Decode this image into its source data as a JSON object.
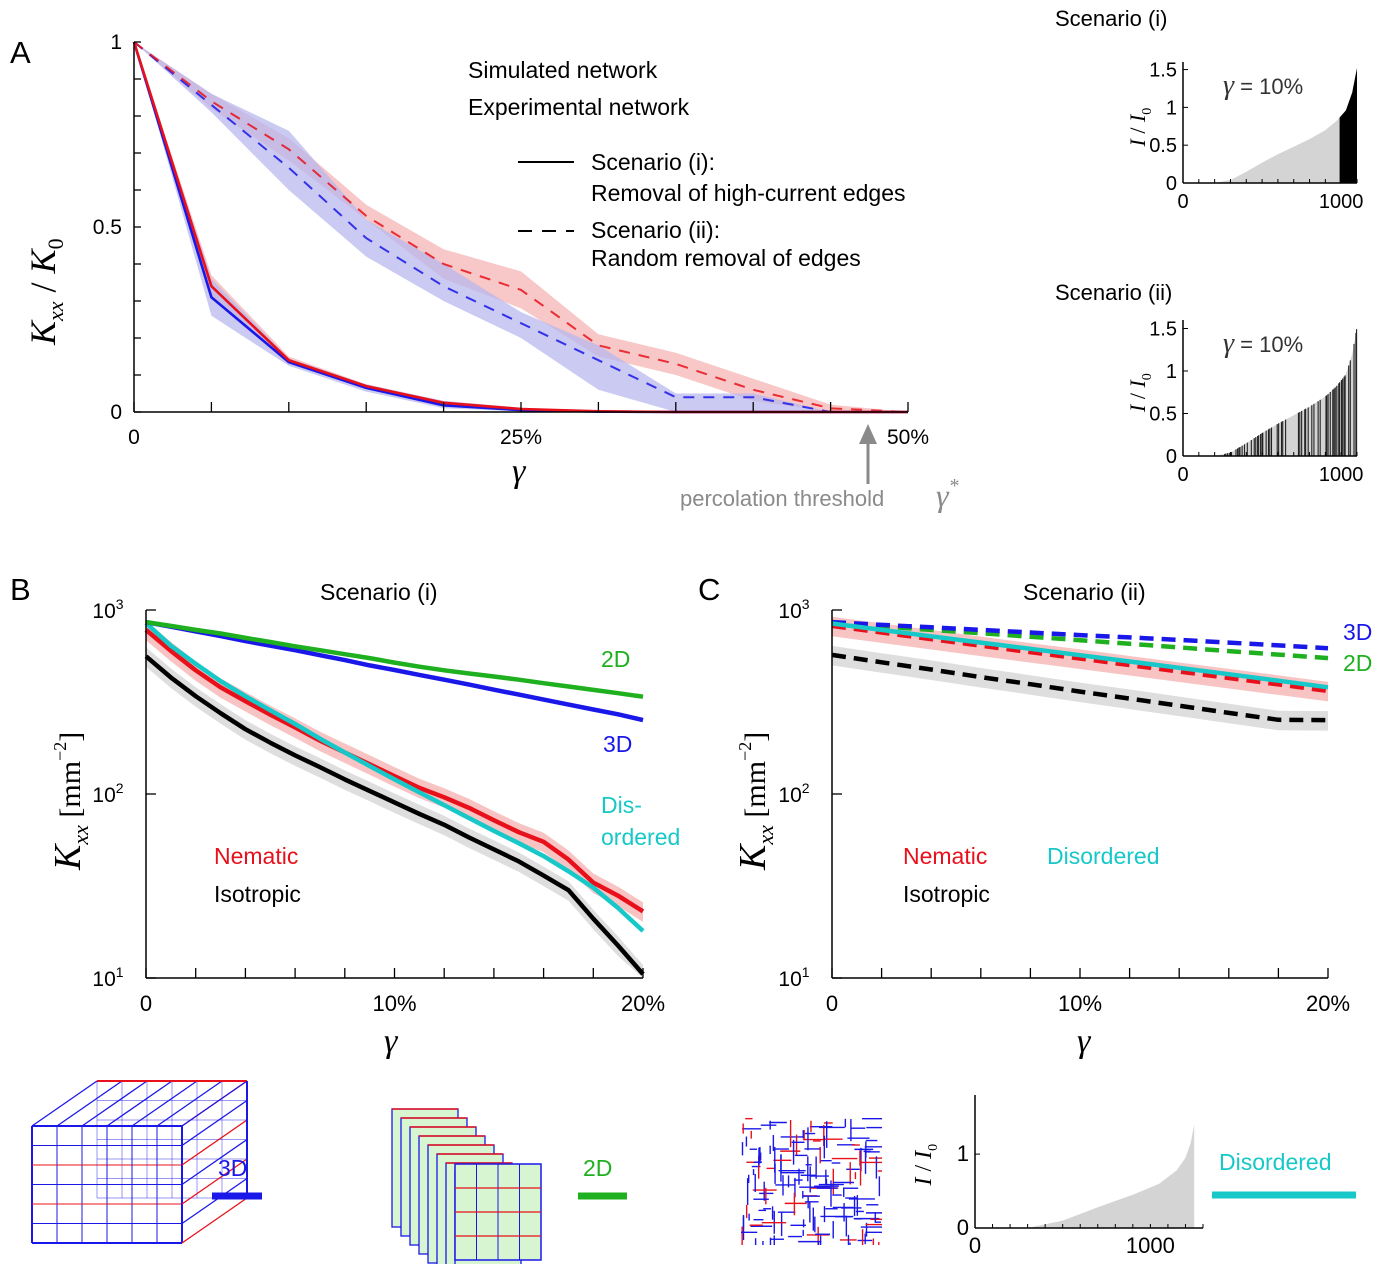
{
  "panels": {
    "A": {
      "letter": "A"
    },
    "B": {
      "letter": "B"
    },
    "C": {
      "letter": "C"
    }
  },
  "colors": {
    "red": "#e8101a",
    "blue": "#1a18e8",
    "green": "#1fb01f",
    "cyan": "#17c8c8",
    "black": "#000000",
    "gray": "#8a8a8a",
    "red_band": "#f6b4b4",
    "blue_band": "#b8b8ee",
    "gray_band": "#d6d6d6"
  },
  "chart_data": [
    {
      "id": "A",
      "type": "line",
      "ylabel": "K_xx / K_0",
      "xlabel": "γ",
      "xlim": [
        0,
        50
      ],
      "ylim": [
        0,
        1
      ],
      "xticklabels": [
        "0",
        "25%",
        "50%"
      ],
      "yticklabels": [
        "0",
        "0.5",
        "1"
      ],
      "legend": {
        "simulated": "Simulated network",
        "experimental": "Experimental network",
        "scenario_i_a": "Scenario (i):",
        "scenario_i_b": "Removal of high-current edges",
        "scenario_ii_a": "Scenario (ii):",
        "scenario_ii_b": "Random removal of edges"
      },
      "annotation": "percolation threshold",
      "x": [
        0,
        5,
        10,
        15,
        20,
        25,
        30,
        35,
        40,
        45,
        50
      ],
      "series": [
        {
          "name": "Simulated network, Scenario (i)",
          "style": "solid",
          "color": "red",
          "values": [
            1.0,
            0.34,
            0.14,
            0.07,
            0.025,
            0.008,
            0.002,
            0.0,
            0.0,
            0.0,
            0.0
          ],
          "lower": [
            1.0,
            0.31,
            0.13,
            0.065,
            0.02,
            0.006,
            0.001,
            0.0,
            0.0,
            0.0,
            0.0
          ],
          "upper": [
            1.0,
            0.37,
            0.15,
            0.075,
            0.03,
            0.01,
            0.003,
            0.0,
            0.0,
            0.0,
            0.0
          ]
        },
        {
          "name": "Experimental network, Scenario (i)",
          "style": "solid",
          "color": "blue",
          "values": [
            1.0,
            0.31,
            0.135,
            0.065,
            0.018,
            0.005,
            0.001,
            0.0,
            0.0,
            0.0,
            0.0
          ],
          "lower": [
            1.0,
            0.26,
            0.125,
            0.055,
            0.01,
            0.002,
            0.0,
            0.0,
            0.0,
            0.0,
            0.0
          ],
          "upper": [
            1.0,
            0.36,
            0.145,
            0.075,
            0.03,
            0.012,
            0.003,
            0.0,
            0.0,
            0.0,
            0.0
          ]
        },
        {
          "name": "Simulated network, Scenario (ii)",
          "style": "dashed",
          "color": "red",
          "values": [
            1.0,
            0.84,
            0.71,
            0.53,
            0.4,
            0.33,
            0.18,
            0.13,
            0.06,
            0.01,
            0.0
          ],
          "lower": [
            1.0,
            0.82,
            0.68,
            0.52,
            0.36,
            0.28,
            0.15,
            0.1,
            0.03,
            0.0,
            0.0
          ],
          "upper": [
            1.0,
            0.86,
            0.74,
            0.56,
            0.44,
            0.38,
            0.21,
            0.16,
            0.09,
            0.02,
            0.0
          ]
        },
        {
          "name": "Experimental network, Scenario (ii)",
          "style": "dashed",
          "color": "blue",
          "values": [
            1.0,
            0.83,
            0.66,
            0.47,
            0.34,
            0.24,
            0.14,
            0.04,
            0.04,
            0.0,
            0.0
          ],
          "lower": [
            1.0,
            0.81,
            0.6,
            0.42,
            0.3,
            0.2,
            0.06,
            0.0,
            0.0,
            0.0,
            0.0
          ],
          "upper": [
            1.0,
            0.86,
            0.76,
            0.52,
            0.4,
            0.27,
            0.18,
            0.05,
            0.05,
            0.0,
            0.0
          ]
        }
      ]
    },
    {
      "id": "A-inset-i",
      "type": "area",
      "title": "Scenario (i)",
      "ylabel": "I / I_0",
      "annotation": "γ = 10%",
      "xlim": [
        0,
        1100
      ],
      "ylim": [
        0,
        1.6
      ],
      "xticklabels": [
        "0",
        "1000"
      ],
      "yticklabels": [
        "0",
        "0.5",
        "1",
        "1.5"
      ],
      "x": [
        0,
        200,
        300,
        400,
        500,
        600,
        700,
        800,
        900,
        970,
        1030,
        1070,
        1100
      ],
      "values": [
        0,
        0,
        0.04,
        0.15,
        0.27,
        0.38,
        0.48,
        0.58,
        0.7,
        0.82,
        0.96,
        1.2,
        1.52
      ],
      "highlight_from_x": 990
    },
    {
      "id": "A-inset-ii",
      "type": "area",
      "title": "Scenario (ii)",
      "ylabel": "I / I_0",
      "annotation": "γ = 10%",
      "xlim": [
        0,
        1100
      ],
      "ylim": [
        0,
        1.6
      ],
      "xticklabels": [
        "0",
        "1000"
      ],
      "yticklabels": [
        "0",
        "0.5",
        "1",
        "1.5"
      ],
      "x": [
        0,
        200,
        300,
        400,
        500,
        600,
        700,
        800,
        900,
        970,
        1030,
        1070,
        1100
      ],
      "values": [
        0,
        0,
        0.04,
        0.15,
        0.27,
        0.38,
        0.48,
        0.58,
        0.7,
        0.82,
        0.96,
        1.2,
        1.52
      ]
    },
    {
      "id": "B",
      "type": "line",
      "title": "Scenario (i)",
      "ylabel": "K_xx [mm^-2]",
      "xlabel": "γ",
      "yscale": "log",
      "xlim": [
        0,
        20
      ],
      "ylim": [
        10,
        1000
      ],
      "xticklabels": [
        "0",
        "10%",
        "20%"
      ],
      "yticklabels": [
        "10^1",
        "10^2",
        "10^3"
      ],
      "x": [
        0,
        1,
        2,
        3,
        4,
        5,
        6,
        7,
        8,
        9,
        10,
        11,
        12,
        13,
        14,
        15,
        16,
        17,
        18,
        19,
        20
      ],
      "series": [
        {
          "name": "2D",
          "color": "green",
          "values": [
            860,
            820,
            780,
            745,
            705,
            670,
            635,
            605,
            575,
            548,
            518,
            492,
            470,
            452,
            435,
            418,
            400,
            384,
            368,
            353,
            338
          ]
        },
        {
          "name": "3D",
          "color": "blue",
          "values": [
            860,
            812,
            765,
            722,
            678,
            640,
            605,
            568,
            534,
            500,
            472,
            444,
            418,
            393,
            369,
            347,
            326,
            306,
            288,
            271,
            252
          ]
        },
        {
          "name": "Dis-\nordered",
          "color": "cyan",
          "values": [
            850,
            640,
            510,
            410,
            340,
            285,
            240,
            200,
            168,
            142,
            120,
            102,
            87,
            74,
            63,
            54,
            46,
            38,
            31,
            24,
            18
          ]
        },
        {
          "name": "Nematic",
          "color": "red",
          "values": [
            780,
            600,
            470,
            380,
            320,
            270,
            230,
            195,
            168,
            145,
            125,
            108,
            96,
            84,
            72,
            62,
            55,
            44,
            33,
            28,
            23
          ]
        },
        {
          "name": "Isotropic",
          "color": "black",
          "values": [
            560,
            430,
            340,
            275,
            225,
            190,
            162,
            140,
            120,
            104,
            90,
            78,
            68,
            58,
            50,
            43,
            36,
            30,
            21,
            15,
            10.5
          ]
        }
      ]
    },
    {
      "id": "C",
      "type": "line",
      "title": "Scenario (ii)",
      "ylabel": "K_xx [mm^-2]",
      "xlabel": "γ",
      "yscale": "log",
      "xlim": [
        0,
        20
      ],
      "ylim": [
        10,
        1000
      ],
      "xticklabels": [
        "0",
        "10%",
        "20%"
      ],
      "yticklabels": [
        "10^1",
        "10^2",
        "10^3"
      ],
      "x": [
        0,
        2,
        4,
        6,
        8,
        10,
        12,
        14,
        16,
        18,
        20
      ],
      "series": [
        {
          "name": "3D",
          "color": "blue",
          "style": "dashed",
          "values": [
            860,
            830,
            805,
            780,
            755,
            730,
            710,
            688,
            665,
            642,
            620
          ]
        },
        {
          "name": "2D",
          "color": "green",
          "style": "dashed",
          "values": [
            850,
            815,
            780,
            748,
            716,
            685,
            655,
            626,
            598,
            572,
            548
          ]
        },
        {
          "name": "Disordered",
          "color": "cyan",
          "style": "solid",
          "values": [
            845,
            780,
            720,
            665,
            615,
            568,
            525,
            485,
            448,
            413,
            380
          ]
        },
        {
          "name": "Nematic",
          "color": "red",
          "style": "dashed",
          "values": [
            820,
            755,
            695,
            640,
            590,
            545,
            502,
            463,
            427,
            394,
            363
          ]
        },
        {
          "name": "Isotropic",
          "color": "black",
          "style": "dashed",
          "values": [
            570,
            520,
            475,
            432,
            395,
            360,
            330,
            302,
            276,
            253,
            252
          ]
        }
      ]
    },
    {
      "id": "legend-inset",
      "type": "area",
      "ylabel": "I / I_0",
      "xlim": [
        0,
        1300
      ],
      "ylim": [
        0,
        1.8
      ],
      "xticklabels": [
        "0",
        "1000"
      ],
      "yticklabels": [
        "0",
        "1"
      ],
      "x": [
        0,
        300,
        500,
        700,
        900,
        1050,
        1150,
        1200,
        1230,
        1250
      ],
      "values": [
        0,
        0,
        0.1,
        0.28,
        0.45,
        0.6,
        0.78,
        0.95,
        1.15,
        1.4
      ]
    }
  ],
  "legend_items": {
    "threeD": "3D",
    "twoD": "2D",
    "disordered": "Disordered"
  }
}
